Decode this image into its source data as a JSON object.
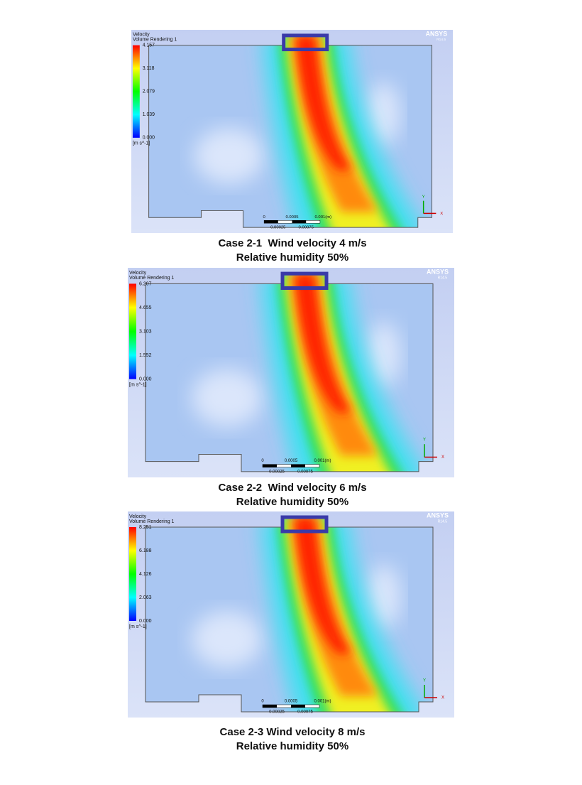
{
  "panels": [
    {
      "title": "Velocity",
      "subtitle": "Volume Rendering 1",
      "legend_ticks": [
        "4.157",
        "3.118",
        "2.079",
        "1.039",
        "0.000"
      ],
      "legend_unit": "[m s^-1]",
      "brand": "ANSYS",
      "version": "R14.5",
      "scale_top": [
        "0",
        "0.0005",
        "0.001",
        "(m)"
      ],
      "scale_bottom": [
        "0.00025",
        "0.00075"
      ],
      "axis_labels": [
        "Y",
        "X"
      ],
      "caption": [
        "Case 2-1  Wind velocity 4 m/s",
        "Relative humidity 50%"
      ]
    },
    {
      "title": "Velocity",
      "subtitle": "Volume Rendering 1",
      "legend_ticks": [
        "6.207",
        "4.655",
        "3.103",
        "1.552",
        "0.000"
      ],
      "legend_unit": "[m s^-1]",
      "brand": "ANSYS",
      "version": "R14.5",
      "scale_top": [
        "0",
        "0.0005",
        "0.001",
        "(m)"
      ],
      "scale_bottom": [
        "0.00025",
        "0.00075"
      ],
      "axis_labels": [
        "Y",
        "X"
      ],
      "caption": [
        "Case 2-2  Wind velocity 6 m/s",
        "Relative humidity 50%"
      ]
    },
    {
      "title": "Velocity",
      "subtitle": "Volume Rendering 1",
      "legend_ticks": [
        "8.251",
        "6.188",
        "4.126",
        "2.063",
        "0.000"
      ],
      "legend_unit": "[m s^-1]",
      "brand": "ANSYS",
      "version": "R14.5",
      "scale_top": [
        "0",
        "0.0005",
        "0.001",
        "(m)"
      ],
      "scale_bottom": [
        "0.00025",
        "0.00075"
      ],
      "axis_labels": [
        "Y",
        "X"
      ],
      "caption": [
        "Case 2-3 Wind velocity 8 m/s",
        "Relative humidity 50%"
      ]
    }
  ]
}
